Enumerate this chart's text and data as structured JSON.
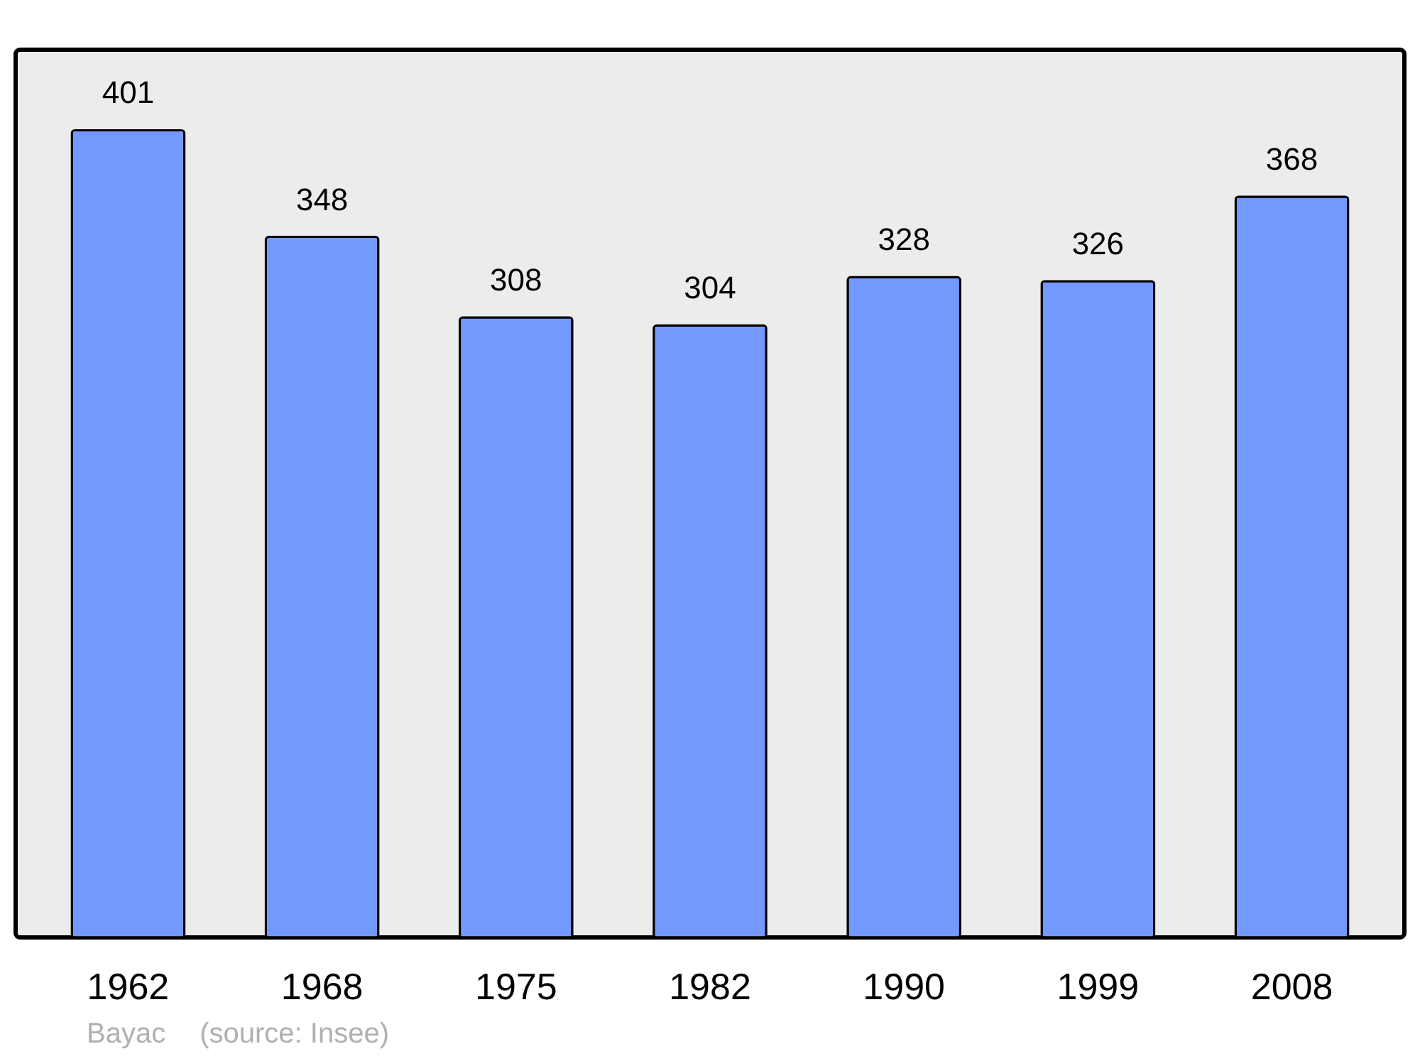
{
  "chart_data": {
    "type": "bar",
    "categories": [
      "1962",
      "1968",
      "1975",
      "1982",
      "1990",
      "1999",
      "2008"
    ],
    "values": [
      401,
      348,
      308,
      304,
      328,
      326,
      368
    ],
    "color": "#7399ff",
    "ylim": [
      0,
      441
    ],
    "data_labels": true,
    "annotations": [
      "Bayac",
      "(source: Insee)"
    ]
  }
}
